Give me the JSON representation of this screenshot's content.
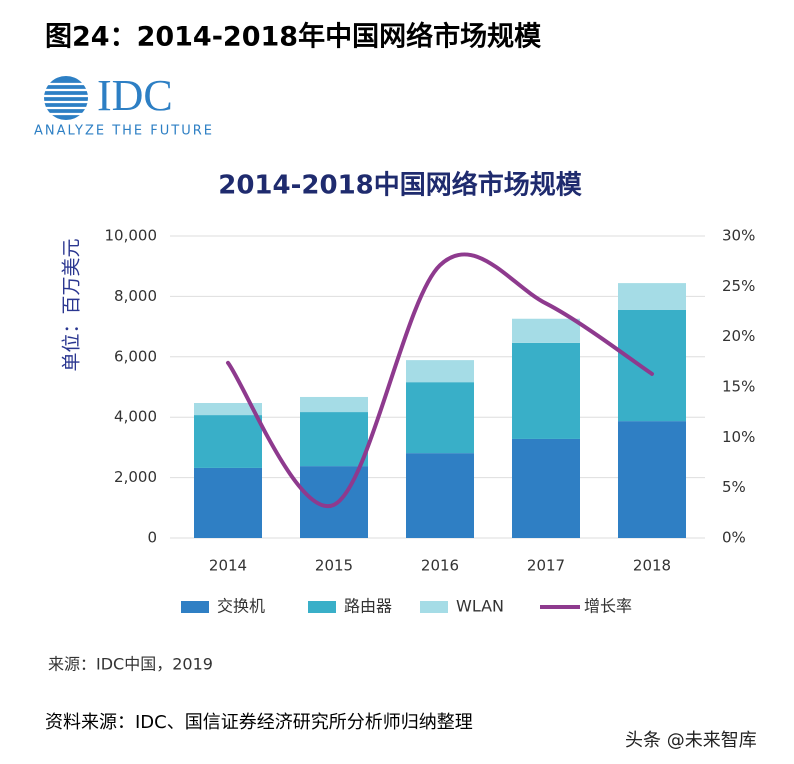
{
  "header": {
    "title": "图24：2014-2018年中国网络市场规模"
  },
  "logo": {
    "name": "IDC",
    "tagline": "ANALYZE THE FUTURE"
  },
  "chart_data": {
    "type": "bar",
    "stacked": true,
    "title": "2014-2018中国网络市场规模",
    "y_label": "单位：百万美元",
    "categories": [
      "2014",
      "2015",
      "2016",
      "2017",
      "2018"
    ],
    "series": [
      {
        "name": "交换机",
        "color": "#2f7fc4",
        "values": [
          2320,
          2380,
          2810,
          3280,
          3870
        ]
      },
      {
        "name": "路由器",
        "color": "#39afc8",
        "values": [
          1750,
          1790,
          2350,
          3180,
          3680
        ]
      },
      {
        "name": "WLAN",
        "color": "#a5dce6",
        "values": [
          400,
          500,
          730,
          800,
          890
        ]
      },
      {
        "name": "增长率",
        "color": "#8e3a8e",
        "type": "line",
        "axis": "y2",
        "values": [
          17.4,
          3.3,
          27.1,
          23.3,
          16.3
        ]
      }
    ],
    "ylim": [
      0,
      10000
    ],
    "yticks": [
      0,
      {
        "value": 2000,
        "label": "2,000"
      },
      {
        "value": 4000,
        "label": "4,000"
      },
      {
        "value": 6000,
        "label": "6,000"
      },
      {
        "value": 8000,
        "label": "8,000"
      },
      {
        "value": 10000,
        "label": "10,000"
      }
    ],
    "y2lim": [
      0,
      30
    ],
    "y2ticks": [
      {
        "value": 0,
        "label": "0%"
      },
      {
        "value": 5,
        "label": "5%"
      },
      {
        "value": 10,
        "label": "10%"
      },
      {
        "value": 15,
        "label": "15%"
      },
      {
        "value": 20,
        "label": "20%"
      },
      {
        "value": 25,
        "label": "25%"
      },
      {
        "value": 30,
        "label": "30%"
      }
    ],
    "grid": true,
    "legend": "bottom",
    "source_note": "来源：IDC中国，2019"
  },
  "footer": {
    "source": "资料来源：IDC、国信证券经济研究所分析师归纳整理",
    "watermark": "头条 @未来智库"
  }
}
